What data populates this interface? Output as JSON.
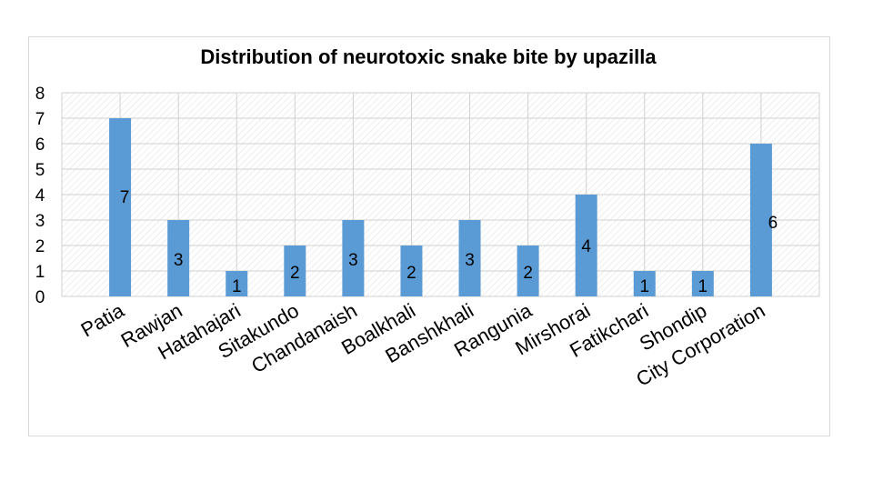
{
  "chart_data": {
    "type": "bar",
    "title": "Distribution of neurotoxic snake bite by upazilla",
    "xlabel": "",
    "ylabel": "",
    "ylim": [
      0,
      8
    ],
    "yticks": [
      "0",
      "1",
      "2",
      "3",
      "4",
      "5",
      "6",
      "7",
      "8"
    ],
    "grid": true,
    "bar_color": "#5b9bd5",
    "categories": [
      "Patia",
      "Rawjan",
      "Hatahajari",
      "Sitakundo",
      "Chandanaish",
      "Boalkhali",
      "Banshkhali",
      "Rangunia",
      "Mirshorai",
      "Fatikchari",
      "Shondip",
      "City Corporation"
    ],
    "values": [
      7,
      3,
      1,
      2,
      3,
      2,
      3,
      2,
      4,
      1,
      1,
      6
    ],
    "data_labels": [
      "7",
      "3",
      "1",
      "2",
      "3",
      "2",
      "3",
      "2",
      "4",
      "1",
      "1",
      "6"
    ]
  }
}
